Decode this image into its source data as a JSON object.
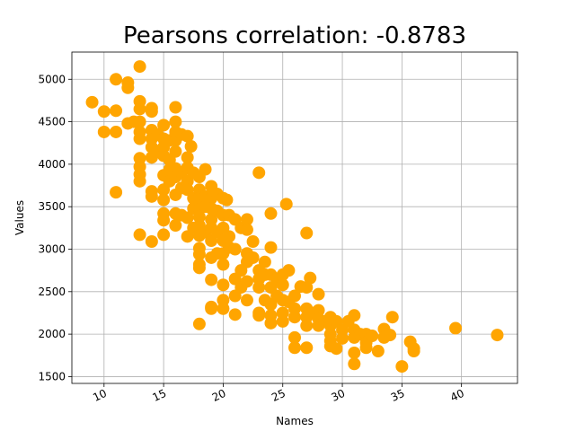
{
  "chart_data": {
    "type": "scatter",
    "title": "Pearsons correlation: -0.8783",
    "xlabel": "Names",
    "ylabel": "Values",
    "xlim": [
      7.3,
      44.7
    ],
    "ylim": [
      1420,
      5320
    ],
    "xticks": [
      10,
      15,
      20,
      25,
      30,
      35,
      40
    ],
    "yticks": [
      1500,
      2000,
      2500,
      3000,
      3500,
      4000,
      4500,
      5000
    ],
    "grid": true,
    "marker_color": "#ffa500",
    "points": [
      {
        "x": 9,
        "y": 4730
      },
      {
        "x": 10,
        "y": 4620
      },
      {
        "x": 10,
        "y": 4380
      },
      {
        "x": 11,
        "y": 5000
      },
      {
        "x": 11,
        "y": 4630
      },
      {
        "x": 11,
        "y": 4380
      },
      {
        "x": 11,
        "y": 3670
      },
      {
        "x": 12,
        "y": 4960
      },
      {
        "x": 12,
        "y": 4900
      },
      {
        "x": 12,
        "y": 4480
      },
      {
        "x": 12.5,
        "y": 4500
      },
      {
        "x": 13,
        "y": 5150
      },
      {
        "x": 13,
        "y": 4740
      },
      {
        "x": 13,
        "y": 4650
      },
      {
        "x": 13,
        "y": 4500
      },
      {
        "x": 13,
        "y": 4380
      },
      {
        "x": 13,
        "y": 4300
      },
      {
        "x": 13,
        "y": 4070
      },
      {
        "x": 13,
        "y": 3970
      },
      {
        "x": 13,
        "y": 3880
      },
      {
        "x": 13,
        "y": 3800
      },
      {
        "x": 13,
        "y": 3170
      },
      {
        "x": 14,
        "y": 4660
      },
      {
        "x": 14,
        "y": 4620
      },
      {
        "x": 14,
        "y": 4400
      },
      {
        "x": 14,
        "y": 4300
      },
      {
        "x": 14,
        "y": 4200
      },
      {
        "x": 14,
        "y": 4080
      },
      {
        "x": 14,
        "y": 3680
      },
      {
        "x": 14,
        "y": 3620
      },
      {
        "x": 14,
        "y": 3090
      },
      {
        "x": 14.5,
        "y": 4350
      },
      {
        "x": 14.5,
        "y": 4150
      },
      {
        "x": 15,
        "y": 4460
      },
      {
        "x": 15,
        "y": 4300
      },
      {
        "x": 15,
        "y": 4200
      },
      {
        "x": 15,
        "y": 4100
      },
      {
        "x": 15,
        "y": 3870
      },
      {
        "x": 15,
        "y": 3700
      },
      {
        "x": 15,
        "y": 3580
      },
      {
        "x": 15,
        "y": 3420
      },
      {
        "x": 15,
        "y": 3340
      },
      {
        "x": 15,
        "y": 3170
      },
      {
        "x": 15.5,
        "y": 4280
      },
      {
        "x": 15.5,
        "y": 4050
      },
      {
        "x": 15.5,
        "y": 3940
      },
      {
        "x": 15.5,
        "y": 3800
      },
      {
        "x": 16,
        "y": 4670
      },
      {
        "x": 16,
        "y": 4500
      },
      {
        "x": 16,
        "y": 4380
      },
      {
        "x": 16,
        "y": 4280
      },
      {
        "x": 16,
        "y": 4150
      },
      {
        "x": 16,
        "y": 3950
      },
      {
        "x": 16,
        "y": 3850
      },
      {
        "x": 16,
        "y": 3640
      },
      {
        "x": 16,
        "y": 3420
      },
      {
        "x": 16,
        "y": 3280
      },
      {
        "x": 16.5,
        "y": 4350
      },
      {
        "x": 16.5,
        "y": 3900
      },
      {
        "x": 16.5,
        "y": 3720
      },
      {
        "x": 16.5,
        "y": 3400
      },
      {
        "x": 17,
        "y": 4330
      },
      {
        "x": 17,
        "y": 4080
      },
      {
        "x": 17,
        "y": 3960
      },
      {
        "x": 17,
        "y": 3800
      },
      {
        "x": 17,
        "y": 3700
      },
      {
        "x": 17,
        "y": 3370
      },
      {
        "x": 17,
        "y": 3150
      },
      {
        "x": 17.3,
        "y": 4210
      },
      {
        "x": 17.5,
        "y": 3900
      },
      {
        "x": 17.5,
        "y": 3600
      },
      {
        "x": 17.5,
        "y": 3480
      },
      {
        "x": 17.5,
        "y": 3250
      },
      {
        "x": 18,
        "y": 3850
      },
      {
        "x": 18,
        "y": 3700
      },
      {
        "x": 18,
        "y": 3600
      },
      {
        "x": 18,
        "y": 3470
      },
      {
        "x": 18,
        "y": 3380
      },
      {
        "x": 18,
        "y": 3280
      },
      {
        "x": 18,
        "y": 3160
      },
      {
        "x": 18,
        "y": 3010
      },
      {
        "x": 18,
        "y": 2940
      },
      {
        "x": 18,
        "y": 2820
      },
      {
        "x": 18,
        "y": 2780
      },
      {
        "x": 18,
        "y": 2120
      },
      {
        "x": 18.5,
        "y": 3940
      },
      {
        "x": 18.5,
        "y": 3620
      },
      {
        "x": 18.5,
        "y": 3500
      },
      {
        "x": 18.5,
        "y": 3200
      },
      {
        "x": 19,
        "y": 3740
      },
      {
        "x": 19,
        "y": 3600
      },
      {
        "x": 19,
        "y": 3480
      },
      {
        "x": 19,
        "y": 3350
      },
      {
        "x": 19,
        "y": 3250
      },
      {
        "x": 19,
        "y": 3100
      },
      {
        "x": 19,
        "y": 2900
      },
      {
        "x": 19,
        "y": 2640
      },
      {
        "x": 19,
        "y": 2320
      },
      {
        "x": 19,
        "y": 2300
      },
      {
        "x": 19.5,
        "y": 3650
      },
      {
        "x": 19.5,
        "y": 3450
      },
      {
        "x": 19.5,
        "y": 3200
      },
      {
        "x": 19.5,
        "y": 2950
      },
      {
        "x": 20,
        "y": 3600
      },
      {
        "x": 20,
        "y": 3400
      },
      {
        "x": 20,
        "y": 3250
      },
      {
        "x": 20,
        "y": 3100
      },
      {
        "x": 20,
        "y": 2950
      },
      {
        "x": 20,
        "y": 2820
      },
      {
        "x": 20,
        "y": 2580
      },
      {
        "x": 20,
        "y": 2400
      },
      {
        "x": 20,
        "y": 2300
      },
      {
        "x": 20.3,
        "y": 3580
      },
      {
        "x": 20.5,
        "y": 3400
      },
      {
        "x": 20.5,
        "y": 3150
      },
      {
        "x": 20.5,
        "y": 3020
      },
      {
        "x": 21,
        "y": 3350
      },
      {
        "x": 21,
        "y": 3000
      },
      {
        "x": 21,
        "y": 2650
      },
      {
        "x": 21,
        "y": 2450
      },
      {
        "x": 21,
        "y": 2230
      },
      {
        "x": 21.5,
        "y": 3250
      },
      {
        "x": 21.5,
        "y": 2750
      },
      {
        "x": 21.5,
        "y": 2550
      },
      {
        "x": 22,
        "y": 3350
      },
      {
        "x": 22,
        "y": 3230
      },
      {
        "x": 22,
        "y": 2950
      },
      {
        "x": 22,
        "y": 2850
      },
      {
        "x": 22,
        "y": 2620
      },
      {
        "x": 22,
        "y": 2400
      },
      {
        "x": 22.5,
        "y": 3090
      },
      {
        "x": 22.5,
        "y": 2900
      },
      {
        "x": 23,
        "y": 3900
      },
      {
        "x": 23,
        "y": 2750
      },
      {
        "x": 23,
        "y": 2650
      },
      {
        "x": 23,
        "y": 2550
      },
      {
        "x": 23,
        "y": 2250
      },
      {
        "x": 23,
        "y": 2220
      },
      {
        "x": 23.5,
        "y": 2850
      },
      {
        "x": 23.5,
        "y": 2700
      },
      {
        "x": 23.5,
        "y": 2400
      },
      {
        "x": 24,
        "y": 3420
      },
      {
        "x": 24,
        "y": 3020
      },
      {
        "x": 24,
        "y": 2700
      },
      {
        "x": 24,
        "y": 2550
      },
      {
        "x": 24,
        "y": 2350
      },
      {
        "x": 24,
        "y": 2220
      },
      {
        "x": 24,
        "y": 2130
      },
      {
        "x": 24.5,
        "y": 2650
      },
      {
        "x": 24.5,
        "y": 2450
      },
      {
        "x": 25,
        "y": 2700
      },
      {
        "x": 25,
        "y": 2580
      },
      {
        "x": 25,
        "y": 2400
      },
      {
        "x": 25,
        "y": 2250
      },
      {
        "x": 25,
        "y": 2150
      },
      {
        "x": 25.3,
        "y": 3530
      },
      {
        "x": 25.5,
        "y": 2750
      },
      {
        "x": 25.5,
        "y": 2380
      },
      {
        "x": 26,
        "y": 2450
      },
      {
        "x": 26,
        "y": 2300
      },
      {
        "x": 26,
        "y": 2200
      },
      {
        "x": 26,
        "y": 1960
      },
      {
        "x": 26,
        "y": 1840
      },
      {
        "x": 26.5,
        "y": 2560
      },
      {
        "x": 27,
        "y": 3190
      },
      {
        "x": 27,
        "y": 2550
      },
      {
        "x": 27,
        "y": 2300
      },
      {
        "x": 27,
        "y": 2200
      },
      {
        "x": 27,
        "y": 2100
      },
      {
        "x": 27,
        "y": 1840
      },
      {
        "x": 27.3,
        "y": 2660
      },
      {
        "x": 27.5,
        "y": 2250
      },
      {
        "x": 28,
        "y": 2470
      },
      {
        "x": 28,
        "y": 2280
      },
      {
        "x": 28,
        "y": 2180
      },
      {
        "x": 28,
        "y": 2100
      },
      {
        "x": 28.5,
        "y": 2150
      },
      {
        "x": 29,
        "y": 2200
      },
      {
        "x": 29,
        "y": 2100
      },
      {
        "x": 29,
        "y": 2000
      },
      {
        "x": 29,
        "y": 1920
      },
      {
        "x": 29,
        "y": 1860
      },
      {
        "x": 29.5,
        "y": 2150
      },
      {
        "x": 29.5,
        "y": 1830
      },
      {
        "x": 30,
        "y": 2050
      },
      {
        "x": 30,
        "y": 1950
      },
      {
        "x": 30.5,
        "y": 2150
      },
      {
        "x": 31,
        "y": 2220
      },
      {
        "x": 31,
        "y": 2050
      },
      {
        "x": 31,
        "y": 1960
      },
      {
        "x": 31,
        "y": 1780
      },
      {
        "x": 31,
        "y": 1650
      },
      {
        "x": 31.5,
        "y": 2000
      },
      {
        "x": 32,
        "y": 2000
      },
      {
        "x": 32,
        "y": 1900
      },
      {
        "x": 32,
        "y": 1840
      },
      {
        "x": 32.5,
        "y": 1980
      },
      {
        "x": 33,
        "y": 1800
      },
      {
        "x": 33.5,
        "y": 2060
      },
      {
        "x": 33.5,
        "y": 1960
      },
      {
        "x": 34,
        "y": 1990
      },
      {
        "x": 34.2,
        "y": 2200
      },
      {
        "x": 35,
        "y": 1620
      },
      {
        "x": 35.7,
        "y": 1910
      },
      {
        "x": 36,
        "y": 1830
      },
      {
        "x": 36,
        "y": 1800
      },
      {
        "x": 39.5,
        "y": 2070
      },
      {
        "x": 43,
        "y": 1990
      }
    ]
  }
}
